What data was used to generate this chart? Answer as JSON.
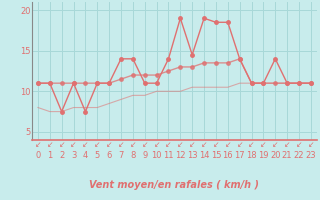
{
  "xlabel": "Vent moyen/en rafales ( km/h )",
  "background_color": "#c8ecec",
  "grid_color": "#a8d8d8",
  "line_color": "#e07070",
  "x": [
    0,
    1,
    2,
    3,
    4,
    5,
    6,
    7,
    8,
    9,
    10,
    11,
    12,
    13,
    14,
    15,
    16,
    17,
    18,
    19,
    20,
    21,
    22,
    23
  ],
  "y_gust": [
    11,
    11,
    7.5,
    11,
    7.5,
    11,
    11,
    14,
    14,
    11,
    11,
    14,
    19,
    14.5,
    19,
    18.5,
    18.5,
    14,
    11,
    11,
    14,
    11,
    11,
    11
  ],
  "y_avg": [
    11,
    11,
    11,
    11,
    11,
    11,
    11,
    11.5,
    12,
    12,
    12,
    12.5,
    13,
    13,
    13.5,
    13.5,
    13.5,
    14,
    11,
    11,
    11,
    11,
    11,
    11
  ],
  "y_min": [
    8.0,
    7.5,
    7.5,
    8.0,
    8.0,
    8.0,
    8.5,
    9.0,
    9.5,
    9.5,
    10.0,
    10.0,
    10.0,
    10.5,
    10.5,
    10.5,
    10.5,
    11.0,
    11.0,
    11.0,
    11.0,
    11.0,
    11.0,
    11.0
  ],
  "ylim": [
    4,
    21
  ],
  "xlim": [
    -0.5,
    23.5
  ],
  "yticks": [
    5,
    10,
    15,
    20
  ],
  "xticks": [
    0,
    1,
    2,
    3,
    4,
    5,
    6,
    7,
    8,
    9,
    10,
    11,
    12,
    13,
    14,
    15,
    16,
    17,
    18,
    19,
    20,
    21,
    22,
    23
  ],
  "arrow_symbol": "↙",
  "xlabel_fontsize": 7,
  "tick_fontsize": 6,
  "linewidth": 1.0,
  "markersize": 2.5
}
